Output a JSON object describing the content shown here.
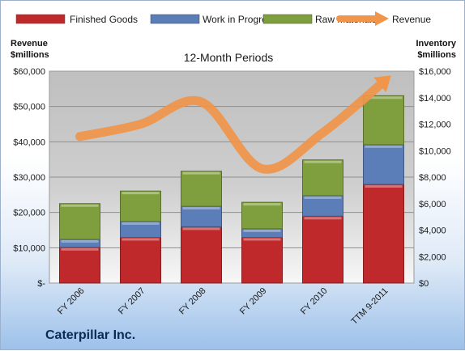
{
  "chart_data": {
    "type": "bar",
    "stacked": true,
    "title": "12-Month Periods",
    "company": "Caterpillar Inc.",
    "categories": [
      "FY 2006",
      "FY 2007",
      "FY 2008",
      "FY 2009",
      "FY 2010",
      "TTM 9-2011"
    ],
    "series": [
      {
        "name": "Finished Goods",
        "axis": "right",
        "color": "#c0292b",
        "values": [
          2700,
          3450,
          4250,
          3450,
          5050,
          7450
        ]
      },
      {
        "name": "Work in Progress",
        "axis": "right",
        "color": "#5b7db8",
        "values": [
          600,
          1200,
          1550,
          650,
          1550,
          3000
        ]
      },
      {
        "name": "Raw Materials",
        "axis": "right",
        "color": "#7f9f3e",
        "values": [
          2700,
          2300,
          2650,
          2000,
          2700,
          3700
        ]
      },
      {
        "name": "Revenue",
        "axis": "left",
        "type": "line",
        "color": "#f0954a",
        "values": [
          41500,
          45000,
          51300,
          32400,
          42600,
          57000
        ]
      }
    ],
    "y_left": {
      "label_line1": "Revenue",
      "label_line2": "$millions",
      "range": [
        0,
        60000
      ],
      "ticks": [
        "$-",
        "$10,000",
        "$20,000",
        "$30,000",
        "$40,000",
        "$50,000",
        "$60,000"
      ]
    },
    "y_right": {
      "label_line1": "Inventory",
      "label_line2": "$millions",
      "range": [
        0,
        16000
      ],
      "ticks": [
        "$0",
        "$2,000",
        "$4,000",
        "$6,000",
        "$8,000",
        "$10,000",
        "$12,000",
        "$14,000",
        "$16,000"
      ]
    },
    "grid": "horizontal",
    "legend": "top"
  }
}
